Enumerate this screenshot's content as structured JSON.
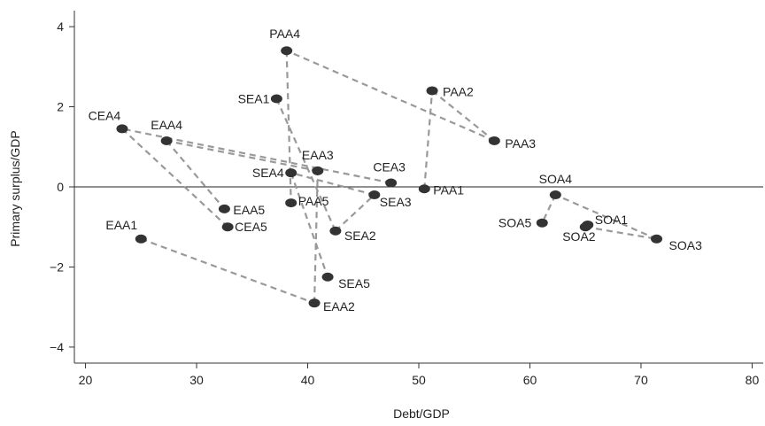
{
  "chart_data": {
    "type": "scatter",
    "xlabel": "Debt/GDP",
    "ylabel": "Primary surplus/GDP",
    "xlim": [
      19,
      81
    ],
    "ylim": [
      -4.4,
      4.4
    ],
    "xticks": [
      20,
      30,
      40,
      50,
      60,
      70,
      80
    ],
    "yticks": [
      -4,
      -2,
      0,
      2,
      4
    ],
    "tick_labels": {
      "x": [
        "20",
        "30",
        "40",
        "50",
        "60",
        "70",
        "80"
      ],
      "y": [
        "−4",
        "−2",
        "0",
        "2",
        "4"
      ]
    },
    "reference_line_y": 0,
    "points": [
      {
        "label": "CEA3",
        "x": 47.5,
        "y": 0.1
      },
      {
        "label": "CEA4",
        "x": 23.3,
        "y": 1.45
      },
      {
        "label": "CEA5",
        "x": 32.8,
        "y": -1.0
      },
      {
        "label": "EAA1",
        "x": 25.0,
        "y": -1.3
      },
      {
        "label": "EAA2",
        "x": 40.6,
        "y": -2.9
      },
      {
        "label": "EAA3",
        "x": 40.9,
        "y": 0.4
      },
      {
        "label": "EAA4",
        "x": 27.3,
        "y": 1.15
      },
      {
        "label": "EAA5",
        "x": 32.5,
        "y": -0.55
      },
      {
        "label": "PAA1",
        "x": 50.5,
        "y": -0.05
      },
      {
        "label": "PAA2",
        "x": 51.2,
        "y": 2.4
      },
      {
        "label": "PAA3",
        "x": 56.8,
        "y": 1.15
      },
      {
        "label": "PAA4",
        "x": 38.1,
        "y": 3.4
      },
      {
        "label": "PAA5",
        "x": 38.5,
        "y": -0.4
      },
      {
        "label": "SEA1",
        "x": 37.2,
        "y": 2.2
      },
      {
        "label": "SEA2",
        "x": 42.5,
        "y": -1.1
      },
      {
        "label": "SEA3",
        "x": 46.0,
        "y": -0.2
      },
      {
        "label": "SEA4",
        "x": 38.5,
        "y": 0.35
      },
      {
        "label": "SEA5",
        "x": 41.8,
        "y": -2.25
      },
      {
        "label": "SOA1",
        "x": 65.2,
        "y": -0.95
      },
      {
        "label": "SOA2",
        "x": 65.0,
        "y": -1.0
      },
      {
        "label": "SOA3",
        "x": 71.4,
        "y": -1.3
      },
      {
        "label": "SOA4",
        "x": 62.3,
        "y": -0.2
      },
      {
        "label": "SOA5",
        "x": 61.1,
        "y": -0.9
      }
    ],
    "series": [
      {
        "points": [
          "CEA3",
          "CEA4",
          "CEA5"
        ]
      },
      {
        "points": [
          "EAA1",
          "EAA2",
          "EAA3",
          "EAA4",
          "EAA5"
        ]
      },
      {
        "points": [
          "PAA1",
          "PAA2",
          "PAA3",
          "PAA4",
          "PAA5"
        ]
      },
      {
        "points": [
          "SEA1",
          "SEA2",
          "SEA3",
          "SEA4",
          "SEA5"
        ]
      },
      {
        "points": [
          "SOA1",
          "SOA2",
          "SOA3",
          "SOA4",
          "SOA5"
        ]
      }
    ]
  }
}
